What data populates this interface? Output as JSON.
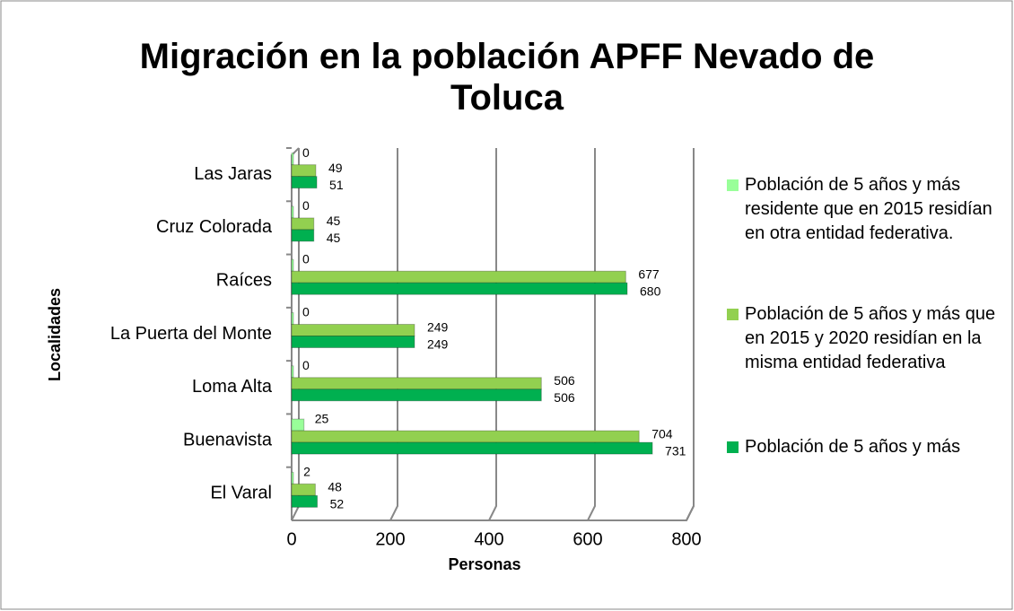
{
  "chart_data": {
    "type": "bar",
    "orientation": "horizontal",
    "title": "Migración en la población APFF Nevado de Toluca",
    "x_label": "Personas",
    "y_label": "Localidades",
    "categories": [
      "Las Jaras",
      "Cruz Colorada",
      "Raíces",
      "La Puerta del Monte",
      "Loma Alta",
      "Buenavista",
      "El Varal"
    ],
    "series": [
      {
        "name": "Población de 5 años y más residente que en 2015 residían en otra entidad federativa.",
        "color": "#99ff99",
        "values": [
          0,
          0,
          0,
          0,
          0,
          25,
          2
        ]
      },
      {
        "name": "Población de 5 años y más que en 2015 y 2020 residían en la misma entidad federativa",
        "color": "#92d050",
        "values": [
          49,
          45,
          677,
          249,
          506,
          704,
          48
        ]
      },
      {
        "name": "Población de 5 años y más",
        "color": "#00b050",
        "values": [
          51,
          45,
          680,
          249,
          506,
          731,
          52
        ]
      }
    ],
    "xlim": [
      0,
      800
    ],
    "xticks": [
      0,
      200,
      400,
      600,
      800
    ],
    "grid": true
  }
}
